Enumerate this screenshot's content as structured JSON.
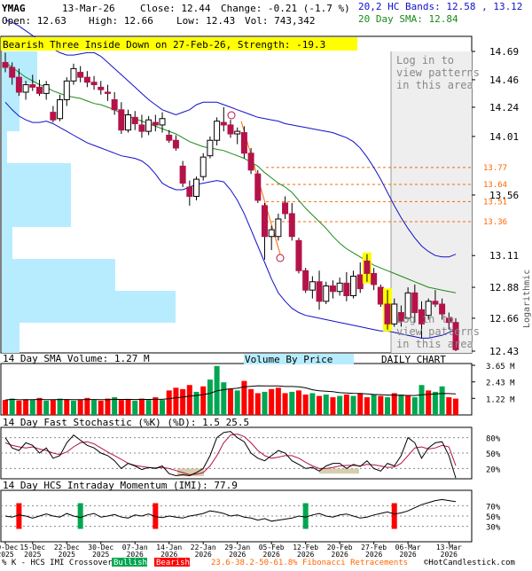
{
  "header": {
    "ticker": "YMAG",
    "date": "13-Mar-26",
    "close_label": "Close: 12.44",
    "change_label": "Change: -0.21 (-1.7 %)",
    "open_label": "Open: 12.63",
    "high_label": "High: 12.66",
    "low_label": "Low: 12.43",
    "vol_label": "Vol: 743,342",
    "bb_label": "20,2 HC Bands: 12.58 , 13.12",
    "sma_label": "20 Day SMA: 12.84"
  },
  "pattern_banner": "Bearish Three Inside Down on 27-Feb-26, Strength: -19.3",
  "login_notice": [
    "Log in to",
    "view patterns",
    "in this area"
  ],
  "panel_labels": {
    "volume": "14 Day SMA Volume: 1.27 M",
    "vbp": "Volume By Price",
    "daily": "DAILY CHART",
    "stoch": "14 Day Fast Stochastic (%K) (%D): 1.5 25.5",
    "imi": "14 Day HCS Intraday Momentum (IMI): 77.9",
    "logarithmic": "Logarithmic"
  },
  "footer": {
    "crossover": "% K - HCS IMI Crossover:",
    "bullish": "Bullish",
    "bearish": "Bearish",
    "fib": "23.6-38.2-50-61.8% Fibonacci Retracements",
    "credit": "©HotCandlestick.com"
  },
  "colors": {
    "up": "#00a651",
    "down": "#b5124a",
    "bb": "#1010c8",
    "sma": "#1a8a1a",
    "fib": "#ff6600",
    "vbp": "#b7ecff",
    "highlight": "#ffff00",
    "bar_red": "#ff0000",
    "bar_green": "#00a651"
  },
  "chart_data": [
    {
      "type": "candlestick",
      "scale": "log",
      "ylim": [
        12.43,
        14.69
      ],
      "y_ticks": [
        "14.69",
        "14.46",
        "14.24",
        "14.01",
        "13.56",
        "13.11",
        "12.88",
        "12.66",
        "12.43"
      ],
      "fib_levels": [
        "13.77",
        "13.64",
        "13.51",
        "13.36"
      ],
      "x_labels": [
        [
          "09-Dec",
          "2025"
        ],
        [
          "15-Dec",
          "2025"
        ],
        [
          "22-Dec",
          "2025"
        ],
        [
          "30-Dec",
          "2025"
        ],
        [
          "07-Jan",
          "2026"
        ],
        [
          "14-Jan",
          "2026"
        ],
        [
          "22-Jan",
          "2026"
        ],
        [
          "29-Jan",
          "2026"
        ],
        [
          "05-Feb",
          "2026"
        ],
        [
          "12-Feb",
          "2026"
        ],
        [
          "20-Feb",
          "2026"
        ],
        [
          "27-Feb",
          "2026"
        ],
        [
          "06-Mar",
          "2026"
        ],
        [
          "13-Mar",
          "2026"
        ]
      ],
      "ohlc": [
        [
          14.6,
          14.68,
          14.52,
          14.56
        ],
        [
          14.56,
          14.6,
          14.42,
          14.48
        ],
        [
          14.48,
          14.55,
          14.33,
          14.36
        ],
        [
          14.36,
          14.45,
          14.3,
          14.42
        ],
        [
          14.42,
          14.5,
          14.37,
          14.4
        ],
        [
          14.4,
          14.46,
          14.33,
          14.35
        ],
        [
          14.35,
          14.45,
          14.3,
          14.42
        ],
        [
          14.2,
          14.25,
          14.12,
          14.14
        ],
        [
          14.15,
          14.34,
          14.13,
          14.3
        ],
        [
          14.3,
          14.48,
          14.25,
          14.45
        ],
        [
          14.45,
          14.59,
          14.42,
          14.55
        ],
        [
          14.52,
          14.57,
          14.44,
          14.48
        ],
        [
          14.48,
          14.53,
          14.4,
          14.44
        ],
        [
          14.44,
          14.49,
          14.38,
          14.42
        ],
        [
          14.4,
          14.45,
          14.34,
          14.38
        ],
        [
          14.36,
          14.42,
          14.29,
          14.35
        ],
        [
          14.3,
          14.36,
          14.18,
          14.22
        ],
        [
          14.22,
          14.28,
          14.03,
          14.06
        ],
        [
          14.06,
          14.22,
          14.04,
          14.18
        ],
        [
          14.16,
          14.21,
          14.06,
          14.11
        ],
        [
          14.1,
          14.18,
          14.0,
          14.05
        ],
        [
          14.05,
          14.17,
          14.02,
          14.14
        ],
        [
          14.12,
          14.18,
          14.05,
          14.1
        ],
        [
          14.1,
          14.2,
          14.04,
          14.15
        ],
        [
          14.02,
          14.06,
          13.96,
          13.98
        ],
        [
          13.98,
          14.02,
          13.9,
          13.92
        ],
        [
          13.78,
          13.82,
          13.62,
          13.65
        ],
        [
          13.62,
          13.67,
          13.48,
          13.55
        ],
        [
          13.55,
          13.7,
          13.52,
          13.68
        ],
        [
          13.7,
          13.88,
          13.67,
          13.85
        ],
        [
          13.86,
          14.01,
          13.84,
          13.98
        ],
        [
          13.98,
          14.16,
          13.94,
          14.13
        ],
        [
          14.12,
          14.24,
          14.05,
          14.1
        ],
        [
          14.1,
          14.14,
          14.0,
          14.03
        ],
        [
          14.03,
          14.08,
          13.95,
          14.05
        ],
        [
          14.04,
          14.09,
          13.84,
          13.88
        ],
        [
          13.88,
          13.92,
          13.72,
          13.75
        ],
        [
          13.72,
          13.75,
          13.5,
          13.52
        ],
        [
          13.48,
          13.5,
          13.08,
          13.25
        ],
        [
          13.25,
          13.33,
          13.15,
          13.3
        ],
        [
          13.25,
          13.42,
          13.22,
          13.38
        ],
        [
          13.5,
          13.55,
          13.38,
          13.42
        ],
        [
          13.42,
          13.5,
          13.22,
          13.25
        ],
        [
          13.22,
          13.24,
          12.98,
          13.0
        ],
        [
          13.0,
          13.02,
          12.84,
          12.86
        ],
        [
          12.86,
          12.96,
          12.8,
          12.92
        ],
        [
          12.92,
          13.0,
          12.72,
          12.78
        ],
        [
          12.78,
          12.92,
          12.76,
          12.89
        ],
        [
          12.89,
          12.93,
          12.8,
          12.85
        ],
        [
          12.85,
          12.95,
          12.82,
          12.91
        ],
        [
          12.91,
          12.99,
          12.78,
          12.82
        ],
        [
          12.82,
          13.0,
          12.8,
          12.96
        ],
        [
          12.97,
          13.06,
          12.84,
          12.87
        ],
        [
          13.07,
          13.12,
          12.92,
          12.98
        ],
        [
          12.98,
          13.02,
          12.86,
          12.9
        ],
        [
          12.88,
          12.9,
          12.74,
          12.76
        ],
        [
          12.76,
          12.86,
          12.58,
          12.62
        ],
        [
          12.62,
          12.8,
          12.6,
          12.76
        ],
        [
          12.7,
          12.75,
          12.6,
          12.64
        ],
        [
          12.66,
          12.88,
          12.64,
          12.84
        ],
        [
          12.84,
          12.9,
          12.63,
          12.7
        ],
        [
          12.72,
          12.78,
          12.52,
          12.62
        ],
        [
          12.68,
          12.8,
          12.65,
          12.78
        ],
        [
          12.78,
          12.86,
          12.74,
          12.76
        ],
        [
          12.76,
          12.8,
          12.65,
          12.69
        ],
        [
          12.66,
          12.7,
          12.58,
          12.63
        ],
        [
          12.63,
          12.66,
          12.43,
          12.44
        ]
      ],
      "sma20": [
        14.6,
        14.56,
        14.52,
        14.48,
        14.45,
        14.42,
        14.4,
        14.37,
        14.35,
        14.33,
        14.32,
        14.31,
        14.29,
        14.27,
        14.26,
        14.24,
        14.22,
        14.19,
        14.17,
        14.15,
        14.13,
        14.11,
        14.09,
        14.07,
        14.05,
        14.03,
        14.0,
        13.97,
        13.95,
        13.93,
        13.92,
        13.91,
        13.9,
        13.88,
        13.86,
        13.84,
        13.81,
        13.78,
        13.73,
        13.69,
        13.65,
        13.62,
        13.58,
        13.52,
        13.46,
        13.41,
        13.36,
        13.31,
        13.25,
        13.2,
        13.16,
        13.13,
        13.1,
        13.07,
        13.04,
        13.02,
        13.0,
        12.98,
        12.96,
        12.94,
        12.92,
        12.9,
        12.88,
        12.87,
        12.86,
        12.85,
        12.84
      ],
      "bb_upper": [
        14.95,
        14.93,
        14.9,
        14.86,
        14.82,
        14.78,
        14.74,
        14.71,
        14.68,
        14.66,
        14.66,
        14.67,
        14.68,
        14.68,
        14.65,
        14.6,
        14.55,
        14.5,
        14.45,
        14.4,
        14.35,
        14.3,
        14.26,
        14.22,
        14.2,
        14.18,
        14.2,
        14.22,
        14.26,
        14.28,
        14.28,
        14.28,
        14.26,
        14.24,
        14.22,
        14.2,
        14.18,
        14.16,
        14.15,
        14.14,
        14.13,
        14.11,
        14.1,
        14.09,
        14.08,
        14.07,
        14.06,
        14.05,
        14.04,
        14.02,
        14.0,
        13.97,
        13.92,
        13.85,
        13.77,
        13.68,
        13.58,
        13.48,
        13.39,
        13.31,
        13.24,
        13.18,
        13.14,
        13.11,
        13.1,
        13.1,
        13.12
      ],
      "bb_lower": [
        14.28,
        14.22,
        14.17,
        14.14,
        14.12,
        14.12,
        14.13,
        14.11,
        14.08,
        14.05,
        14.02,
        13.99,
        13.96,
        13.94,
        13.92,
        13.9,
        13.88,
        13.86,
        13.85,
        13.84,
        13.82,
        13.78,
        13.72,
        13.65,
        13.62,
        13.6,
        13.6,
        13.62,
        13.64,
        13.65,
        13.66,
        13.67,
        13.66,
        13.6,
        13.52,
        13.42,
        13.3,
        13.18,
        13.06,
        12.94,
        12.84,
        12.78,
        12.73,
        12.7,
        12.68,
        12.67,
        12.66,
        12.65,
        12.64,
        12.63,
        12.62,
        12.61,
        12.6,
        12.59,
        12.58,
        12.57,
        12.57,
        12.56,
        12.55,
        12.54,
        12.53,
        12.52,
        12.52,
        12.53,
        12.54,
        12.56,
        12.58
      ],
      "volume_bars": [
        [
          1.1,
          "red"
        ],
        [
          1.2,
          "green"
        ],
        [
          1.05,
          "red"
        ],
        [
          1.15,
          "red"
        ],
        [
          1.1,
          "green"
        ],
        [
          1.25,
          "red"
        ],
        [
          1.05,
          "green"
        ],
        [
          1.1,
          "red"
        ],
        [
          1.2,
          "green"
        ],
        [
          1.15,
          "red"
        ],
        [
          1.05,
          "green"
        ],
        [
          1.1,
          "red"
        ],
        [
          1.25,
          "red"
        ],
        [
          1.1,
          "green"
        ],
        [
          1.05,
          "red"
        ],
        [
          1.2,
          "red"
        ],
        [
          1.3,
          "green"
        ],
        [
          1.1,
          "red"
        ],
        [
          1.15,
          "red"
        ],
        [
          1.05,
          "green"
        ],
        [
          1.2,
          "red"
        ],
        [
          1.1,
          "green"
        ],
        [
          1.3,
          "red"
        ],
        [
          1.1,
          "green"
        ],
        [
          1.8,
          "red"
        ],
        [
          2.0,
          "red"
        ],
        [
          1.9,
          "red"
        ],
        [
          2.2,
          "red"
        ],
        [
          1.7,
          "green"
        ],
        [
          2.1,
          "red"
        ],
        [
          2.6,
          "green"
        ],
        [
          3.6,
          "green"
        ],
        [
          2.4,
          "green"
        ],
        [
          1.9,
          "red"
        ],
        [
          1.8,
          "green"
        ],
        [
          2.5,
          "red"
        ],
        [
          1.9,
          "red"
        ],
        [
          1.6,
          "red"
        ],
        [
          1.7,
          "green"
        ],
        [
          1.9,
          "red"
        ],
        [
          2.0,
          "red"
        ],
        [
          1.6,
          "red"
        ],
        [
          1.7,
          "green"
        ],
        [
          1.8,
          "red"
        ],
        [
          1.5,
          "red"
        ],
        [
          1.6,
          "green"
        ],
        [
          1.4,
          "red"
        ],
        [
          1.5,
          "green"
        ],
        [
          1.3,
          "red"
        ],
        [
          1.4,
          "green"
        ],
        [
          1.5,
          "red"
        ],
        [
          1.4,
          "green"
        ],
        [
          1.6,
          "red"
        ],
        [
          1.3,
          "red"
        ],
        [
          1.5,
          "green"
        ],
        [
          1.4,
          "red"
        ],
        [
          1.3,
          "green"
        ],
        [
          1.6,
          "red"
        ],
        [
          1.5,
          "green"
        ],
        [
          1.4,
          "red"
        ],
        [
          1.3,
          "green"
        ],
        [
          2.2,
          "green"
        ],
        [
          1.8,
          "red"
        ],
        [
          1.7,
          "green"
        ],
        [
          2.1,
          "green"
        ],
        [
          1.3,
          "red"
        ],
        [
          1.2,
          "red"
        ]
      ],
      "volume_ticks": [
        "3.65 M",
        "2.43 M",
        "1.22 M"
      ],
      "stoch_k": [
        80,
        60,
        55,
        70,
        65,
        50,
        60,
        40,
        45,
        70,
        85,
        75,
        65,
        60,
        50,
        45,
        35,
        20,
        30,
        25,
        18,
        22,
        20,
        25,
        10,
        6,
        8,
        6,
        12,
        20,
        45,
        80,
        90,
        92,
        80,
        72,
        50,
        40,
        35,
        45,
        55,
        50,
        35,
        28,
        20,
        22,
        15,
        25,
        30,
        30,
        20,
        28,
        24,
        35,
        20,
        15,
        30,
        25,
        45,
        80,
        70,
        40,
        60,
        70,
        72,
        45,
        1.5
      ],
      "stoch_d": [
        70,
        65,
        62,
        60,
        62,
        58,
        55,
        50,
        47,
        52,
        62,
        70,
        72,
        68,
        60,
        52,
        45,
        38,
        30,
        26,
        24,
        22,
        21,
        22,
        20,
        16,
        12,
        8,
        9,
        12,
        25,
        45,
        70,
        85,
        87,
        82,
        70,
        55,
        45,
        40,
        42,
        45,
        45,
        40,
        32,
        25,
        20,
        20,
        22,
        25,
        26,
        26,
        25,
        28,
        27,
        25,
        22,
        23,
        30,
        45,
        60,
        62,
        58,
        60,
        65,
        62,
        25.5
      ],
      "stoch_ticks": [
        "80%",
        "50%",
        "20%"
      ],
      "imi": [
        50,
        48,
        52,
        50,
        46,
        50,
        54,
        50,
        48,
        55,
        50,
        47,
        52,
        55,
        48,
        50,
        53,
        48,
        46,
        52,
        50,
        54,
        49,
        47,
        50,
        48,
        46,
        50,
        52,
        55,
        60,
        58,
        55,
        50,
        52,
        48,
        46,
        42,
        45,
        40,
        42,
        44,
        46,
        50,
        48,
        52,
        55,
        50,
        48,
        52,
        54,
        50,
        46,
        48,
        52,
        55,
        58,
        54,
        56,
        60,
        66,
        72,
        76,
        80,
        82,
        80,
        77.9
      ],
      "imi_ticks": [
        "70%",
        "50%",
        "30%"
      ],
      "crossover_markers": [
        [
          2,
          "bearish"
        ],
        [
          11,
          "bullish"
        ],
        [
          22,
          "bearish"
        ],
        [
          44,
          "bullish"
        ],
        [
          57,
          "bearish"
        ]
      ]
    }
  ]
}
